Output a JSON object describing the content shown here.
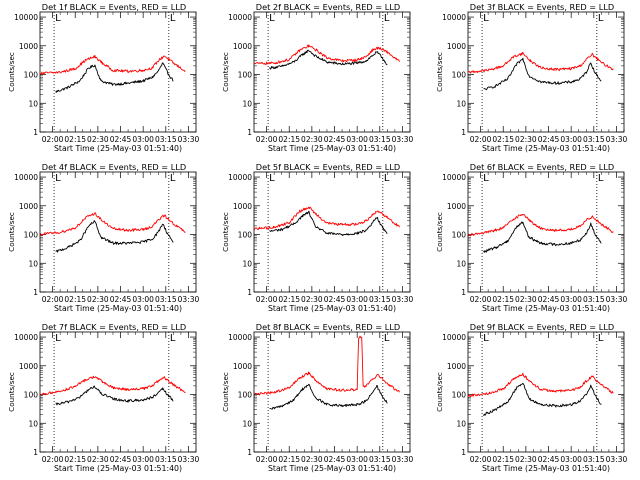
{
  "figure": {
    "x_tick_labels": [
      "02:00",
      "02:15",
      "02:30",
      "02:45",
      "03:00",
      "03:15",
      "03:30"
    ],
    "xlabel": "Start Time (25-May-03 01:51:40)",
    "ylabel": "Counts/sec",
    "y_tick_labels": [
      "1",
      "10",
      "100",
      "1000",
      "10000"
    ],
    "colors": {
      "events": "#000000",
      "lld": "#ff0000"
    },
    "marker_label": "L"
  },
  "chart_data": [
    {
      "type": "line",
      "title": "Det 1f BLACK = Events, RED = LLD",
      "x_range": [
        "01:51:40",
        "03:35:00"
      ],
      "y_scale": "log",
      "ylim": [
        1,
        15000
      ],
      "markers": [
        "02:01",
        "03:17"
      ],
      "series": [
        {
          "name": "Events",
          "x": [
            "02:02",
            "02:10",
            "02:18",
            "02:24",
            "02:28",
            "02:32",
            "02:40",
            "02:50",
            "03:00",
            "03:06",
            "03:10",
            "03:13",
            "03:16",
            "03:20"
          ],
          "values": [
            25,
            35,
            60,
            170,
            210,
            60,
            45,
            50,
            60,
            80,
            130,
            250,
            120,
            60
          ]
        },
        {
          "name": "LLD",
          "x": [
            "01:52",
            "02:05",
            "02:15",
            "02:22",
            "02:28",
            "02:33",
            "02:40",
            "02:50",
            "03:00",
            "03:06",
            "03:10",
            "03:14",
            "03:20",
            "03:28"
          ],
          "values": [
            110,
            120,
            160,
            320,
            420,
            250,
            140,
            130,
            140,
            170,
            300,
            450,
            250,
            130
          ]
        }
      ]
    },
    {
      "type": "line",
      "title": "Det 2f BLACK = Events, RED = LLD",
      "x_range": [
        "01:51:40",
        "03:35:00"
      ],
      "y_scale": "log",
      "ylim": [
        1,
        15000
      ],
      "markers": [
        "02:01",
        "03:17"
      ],
      "series": [
        {
          "name": "Events",
          "x": [
            "02:02",
            "02:10",
            "02:18",
            "02:24",
            "02:28",
            "02:32",
            "02:40",
            "02:50",
            "03:00",
            "03:06",
            "03:10",
            "03:13",
            "03:16",
            "03:20"
          ],
          "values": [
            170,
            190,
            270,
            500,
            700,
            450,
            270,
            230,
            250,
            300,
            450,
            600,
            420,
            220
          ]
        },
        {
          "name": "LLD",
          "x": [
            "01:52",
            "02:05",
            "02:15",
            "02:22",
            "02:28",
            "02:33",
            "02:40",
            "02:50",
            "03:00",
            "03:06",
            "03:10",
            "03:14",
            "03:20",
            "03:28"
          ],
          "values": [
            240,
            250,
            330,
            700,
            1000,
            700,
            380,
            300,
            320,
            420,
            700,
            850,
            600,
            280
          ]
        }
      ]
    },
    {
      "type": "line",
      "title": "Det 3f BLACK = Events, RED = LLD",
      "x_range": [
        "01:51:40",
        "03:35:00"
      ],
      "y_scale": "log",
      "ylim": [
        1,
        15000
      ],
      "markers": [
        "02:01",
        "03:17"
      ],
      "series": [
        {
          "name": "Events",
          "x": [
            "02:02",
            "02:10",
            "02:18",
            "02:24",
            "02:28",
            "02:32",
            "02:40",
            "02:50",
            "03:00",
            "03:06",
            "03:10",
            "03:13",
            "03:16",
            "03:20"
          ],
          "values": [
            30,
            40,
            70,
            230,
            350,
            90,
            55,
            50,
            55,
            70,
            120,
            260,
            110,
            60
          ]
        },
        {
          "name": "LLD",
          "x": [
            "01:52",
            "02:05",
            "02:15",
            "02:22",
            "02:28",
            "02:33",
            "02:40",
            "02:50",
            "03:00",
            "03:06",
            "03:10",
            "03:14",
            "03:20",
            "03:28"
          ],
          "values": [
            120,
            140,
            200,
            420,
            550,
            300,
            170,
            150,
            160,
            200,
            330,
            500,
            260,
            150
          ]
        }
      ]
    },
    {
      "type": "line",
      "title": "Det 4f BLACK = Events, RED = LLD",
      "x_range": [
        "01:51:40",
        "03:35:00"
      ],
      "y_scale": "log",
      "ylim": [
        1,
        15000
      ],
      "markers": [
        "02:01",
        "03:17"
      ],
      "series": [
        {
          "name": "Events",
          "x": [
            "02:02",
            "02:10",
            "02:18",
            "02:24",
            "02:28",
            "02:32",
            "02:40",
            "02:50",
            "03:00",
            "03:06",
            "03:10",
            "03:13",
            "03:16",
            "03:20"
          ],
          "values": [
            25,
            35,
            60,
            200,
            290,
            80,
            50,
            50,
            55,
            70,
            120,
            240,
            110,
            55
          ]
        },
        {
          "name": "LLD",
          "x": [
            "01:52",
            "02:05",
            "02:15",
            "02:22",
            "02:28",
            "02:33",
            "02:40",
            "02:50",
            "03:00",
            "03:06",
            "03:10",
            "03:14",
            "03:20",
            "03:28"
          ],
          "values": [
            100,
            120,
            170,
            380,
            550,
            300,
            160,
            140,
            150,
            190,
            320,
            460,
            240,
            120
          ]
        }
      ]
    },
    {
      "type": "line",
      "title": "Det 5f BLACK = Events, RED = LLD",
      "x_range": [
        "01:51:40",
        "03:35:00"
      ],
      "y_scale": "log",
      "ylim": [
        1,
        15000
      ],
      "markers": [
        "02:01",
        "03:17"
      ],
      "series": [
        {
          "name": "Events",
          "x": [
            "02:02",
            "02:10",
            "02:18",
            "02:24",
            "02:28",
            "02:32",
            "02:40",
            "02:50",
            "03:00",
            "03:06",
            "03:10",
            "03:13",
            "03:16",
            "03:20"
          ],
          "values": [
            130,
            150,
            230,
            450,
            600,
            200,
            110,
            100,
            110,
            140,
            250,
            400,
            200,
            110
          ]
        },
        {
          "name": "LLD",
          "x": [
            "01:52",
            "02:05",
            "02:15",
            "02:22",
            "02:28",
            "02:33",
            "02:40",
            "02:50",
            "03:00",
            "03:06",
            "03:10",
            "03:14",
            "03:20",
            "03:28"
          ],
          "values": [
            160,
            180,
            260,
            650,
            900,
            500,
            250,
            220,
            230,
            300,
            500,
            650,
            400,
            180
          ]
        }
      ]
    },
    {
      "type": "line",
      "title": "Det 6f BLACK = Events, RED = LLD",
      "x_range": [
        "01:51:40",
        "03:35:00"
      ],
      "y_scale": "log",
      "ylim": [
        1,
        15000
      ],
      "markers": [
        "02:01",
        "03:17"
      ],
      "series": [
        {
          "name": "Events",
          "x": [
            "02:02",
            "02:10",
            "02:18",
            "02:24",
            "02:28",
            "02:32",
            "02:40",
            "02:50",
            "03:00",
            "03:06",
            "03:10",
            "03:13",
            "03:16",
            "03:20"
          ],
          "values": [
            25,
            35,
            60,
            190,
            270,
            80,
            50,
            45,
            50,
            65,
            110,
            230,
            100,
            50
          ]
        },
        {
          "name": "LLD",
          "x": [
            "01:52",
            "02:05",
            "02:15",
            "02:22",
            "02:28",
            "02:33",
            "02:40",
            "02:50",
            "03:00",
            "03:06",
            "03:10",
            "03:14",
            "03:20",
            "03:28"
          ],
          "values": [
            100,
            120,
            170,
            360,
            520,
            290,
            160,
            140,
            150,
            190,
            310,
            430,
            230,
            120
          ]
        }
      ]
    },
    {
      "type": "line",
      "title": "Det 7f BLACK = Events, RED = LLD",
      "x_range": [
        "01:51:40",
        "03:35:00"
      ],
      "y_scale": "log",
      "ylim": [
        1,
        15000
      ],
      "markers": [
        "02:01",
        "03:17"
      ],
      "series": [
        {
          "name": "Events",
          "x": [
            "02:02",
            "02:10",
            "02:18",
            "02:24",
            "02:28",
            "02:32",
            "02:40",
            "02:50",
            "03:00",
            "03:06",
            "03:10",
            "03:13",
            "03:16",
            "03:20"
          ],
          "values": [
            45,
            55,
            80,
            150,
            190,
            110,
            70,
            60,
            65,
            80,
            110,
            160,
            100,
            60
          ]
        },
        {
          "name": "LLD",
          "x": [
            "01:52",
            "02:05",
            "02:15",
            "02:22",
            "02:28",
            "02:33",
            "02:40",
            "02:50",
            "03:00",
            "03:06",
            "03:10",
            "03:14",
            "03:20",
            "03:28"
          ],
          "values": [
            100,
            130,
            190,
            330,
            420,
            280,
            170,
            150,
            160,
            200,
            300,
            380,
            220,
            120
          ]
        }
      ]
    },
    {
      "type": "line",
      "title": "Det 8f BLACK = Events, RED = LLD",
      "x_range": [
        "01:51:40",
        "03:35:00"
      ],
      "y_scale": "log",
      "ylim": [
        1,
        15000
      ],
      "markers": [
        "02:01",
        "03:17"
      ],
      "series": [
        {
          "name": "Events",
          "x": [
            "02:02",
            "02:10",
            "02:18",
            "02:24",
            "02:28",
            "02:32",
            "02:40",
            "02:50",
            "03:00",
            "03:06",
            "03:10",
            "03:13",
            "03:16",
            "03:20"
          ],
          "values": [
            30,
            40,
            65,
            160,
            220,
            80,
            45,
            40,
            45,
            60,
            110,
            200,
            100,
            50
          ]
        },
        {
          "name": "LLD",
          "x": [
            "01:52",
            "02:05",
            "02:15",
            "02:22",
            "02:28",
            "02:33",
            "02:40",
            "02:50",
            "03:00",
            "03:01",
            "03:03",
            "03:04",
            "03:06",
            "03:10",
            "03:14",
            "03:20",
            "03:28"
          ],
          "values": [
            100,
            120,
            170,
            380,
            560,
            300,
            160,
            140,
            150,
            10000,
            10000,
            180,
            200,
            330,
            480,
            240,
            120
          ]
        }
      ]
    },
    {
      "type": "line",
      "title": "Det 9f BLACK = Events, RED = LLD",
      "x_range": [
        "01:51:40",
        "03:35:00"
      ],
      "y_scale": "log",
      "ylim": [
        1,
        15000
      ],
      "markers": [
        "02:01",
        "03:17"
      ],
      "series": [
        {
          "name": "Events",
          "x": [
            "02:02",
            "02:10",
            "02:18",
            "02:24",
            "02:28",
            "02:32",
            "02:40",
            "02:50",
            "03:00",
            "03:06",
            "03:10",
            "03:13",
            "03:16",
            "03:20"
          ],
          "values": [
            20,
            30,
            55,
            180,
            260,
            70,
            45,
            40,
            45,
            60,
            100,
            210,
            90,
            45
          ]
        },
        {
          "name": "LLD",
          "x": [
            "01:52",
            "02:05",
            "02:15",
            "02:22",
            "02:28",
            "02:33",
            "02:40",
            "02:50",
            "03:00",
            "03:06",
            "03:10",
            "03:14",
            "03:20",
            "03:28"
          ],
          "values": [
            90,
            110,
            160,
            350,
            500,
            280,
            150,
            130,
            140,
            180,
            300,
            420,
            220,
            110
          ]
        }
      ]
    }
  ]
}
